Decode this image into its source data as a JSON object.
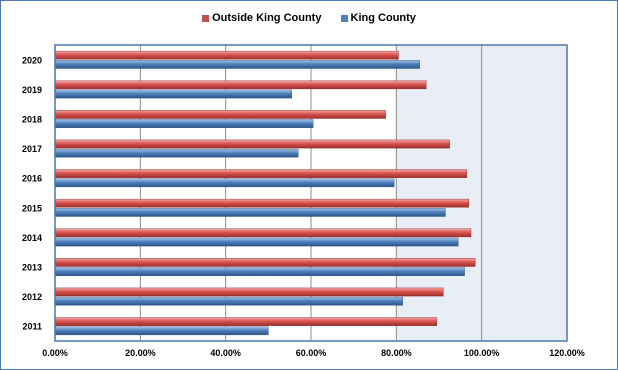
{
  "chart_data": {
    "type": "bar",
    "orientation": "horizontal",
    "categories": [
      "2011",
      "2012",
      "2013",
      "2014",
      "2015",
      "2016",
      "2017",
      "2018",
      "2019",
      "2020"
    ],
    "series": [
      {
        "name": "Outside King County",
        "color": "#c0504d",
        "values": [
          89.5,
          91,
          98.5,
          97.5,
          97,
          96.5,
          92.5,
          77.5,
          87,
          80.5
        ]
      },
      {
        "name": "King County",
        "color": "#4f81bd",
        "values": [
          50,
          81.5,
          96,
          94.5,
          91.5,
          79.5,
          57,
          60.5,
          55.5,
          85.5
        ]
      }
    ],
    "xlim": [
      0,
      120
    ],
    "x_ticks": [
      "0.00%",
      "20.00%",
      "40.00%",
      "60.00%",
      "80.00%",
      "100.00%",
      "120.00%"
    ],
    "legend_position": "top",
    "grid": true,
    "background_band": {
      "from": 80,
      "to": 120,
      "color": "#e9eef6"
    }
  }
}
